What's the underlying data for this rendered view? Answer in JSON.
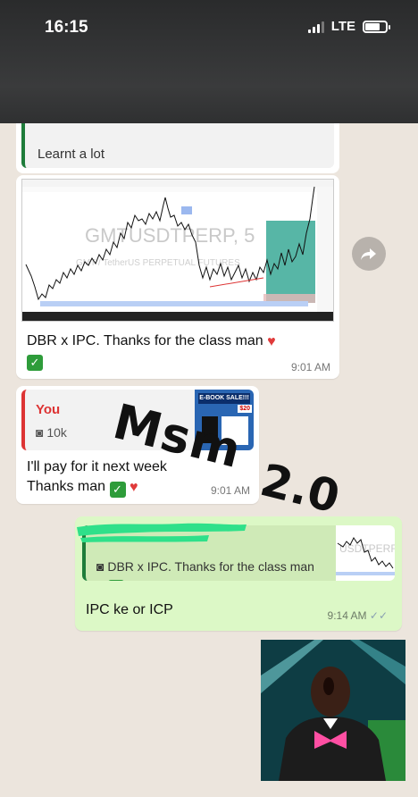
{
  "status_bar": {
    "time": "16:15",
    "network": "LTE"
  },
  "top_quote": {
    "text": "Learnt a lot"
  },
  "message_chart": {
    "chart_title": "GMTUSDTPERP, 5",
    "chart_subtitle": "GMT / TetherUS PERPETUAL FUTURES",
    "text": "DBR x IPC. Thanks for the class man",
    "time": "9:01 AM"
  },
  "message_you": {
    "quote_author": "You",
    "quote_text": "10k",
    "thumb_sale": "E-BOOK SALE!!!",
    "thumb_price": "$20",
    "line1": "I'll pay for it next week",
    "line2": "Thanks man",
    "time": "9:01 AM"
  },
  "overlay": {
    "line1": "Msm",
    "line2": "2.0"
  },
  "message_out": {
    "quote_text": "DBR x IPC. Thanks for the class man",
    "thumb_label": "USDTPERF",
    "text": "IPC ke or ICP",
    "time": "9:14 AM"
  },
  "colors": {
    "outgoing": "#dcf8c6",
    "incoming": "#ffffff",
    "accent": "#1e7c3a",
    "you": "#d33333"
  }
}
